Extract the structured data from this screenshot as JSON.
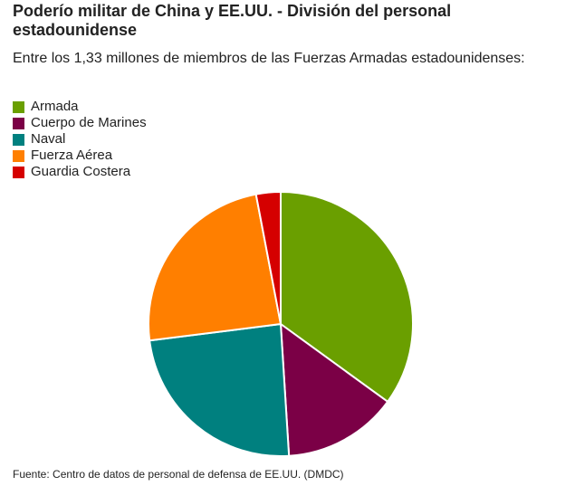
{
  "chart_data": {
    "type": "pie",
    "title": "Poderío militar de China y EE.UU. - División del personal estadounidense",
    "subtitle": "Entre los 1,33 millones de miembros de las Fuerzas Armadas estadounidenses:",
    "categories": [
      "Armada",
      "Cuerpo de Marines",
      "Naval",
      "Fuerza Aérea",
      "Guardia Costera"
    ],
    "values": [
      35,
      14,
      24,
      24,
      3
    ],
    "colors": [
      "#6a9f00",
      "#7b0046",
      "#00807f",
      "#ff7f00",
      "#d50000"
    ],
    "source": "Fuente: Centro de datos de personal de defensa de EE.UU. (DMDC)"
  }
}
